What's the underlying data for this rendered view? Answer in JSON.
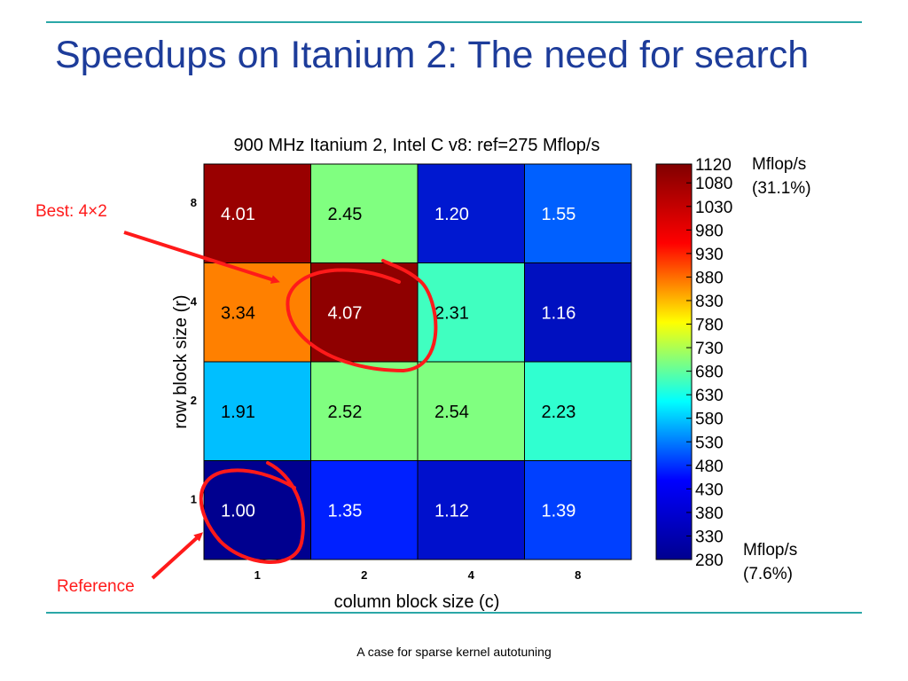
{
  "slide": {
    "title": "Speedups on Itanium 2: The need for search",
    "footer": "A case for sparse kernel autotuning",
    "best_label": "Best: 4×2",
    "reference_label": "Reference",
    "max_note_line1": "Mflop/s",
    "max_note_line2": "(31.1%)",
    "min_note_line1": "Mflop/s",
    "min_note_line2": "(7.6%)"
  },
  "colors": {
    "title": "#1d3c9a",
    "rule": "#2aa7a7",
    "annotation": "#ff1a1a"
  },
  "chart_data": {
    "type": "heatmap",
    "title": "900 MHz Itanium 2, Intel C v8: ref=275 Mflop/s",
    "xlabel": "column block size (c)",
    "ylabel": "row block size (r)",
    "x_categories": [
      "1",
      "2",
      "4",
      "8"
    ],
    "y_categories": [
      "1",
      "2",
      "4",
      "8"
    ],
    "speedups": [
      [
        1.0,
        1.35,
        1.12,
        1.39
      ],
      [
        1.91,
        2.52,
        2.54,
        2.23
      ],
      [
        3.34,
        4.07,
        2.31,
        1.16
      ],
      [
        4.01,
        2.45,
        1.2,
        1.55
      ]
    ],
    "cell_colors": [
      [
        "#00008f",
        "#0020ff",
        "#0010cc",
        "#0040ff"
      ],
      [
        "#00bfff",
        "#80ff80",
        "#80ff80",
        "#30ffd0"
      ],
      [
        "#ff8000",
        "#8f0000",
        "#40ffc0",
        "#0010c0"
      ],
      [
        "#990000",
        "#80ff80",
        "#0018d0",
        "#0060ff"
      ]
    ],
    "colorbar": {
      "min": 280,
      "max": 1120,
      "ticks": [
        1120,
        1080,
        1030,
        980,
        930,
        880,
        830,
        780,
        730,
        680,
        630,
        580,
        530,
        480,
        430,
        380,
        330,
        280
      ],
      "colormap": [
        "#00008f",
        "#0000ff",
        "#00ffff",
        "#ffff00",
        "#ff0000",
        "#800000"
      ]
    },
    "highlight": {
      "best_cell": [
        "4",
        "2"
      ],
      "reference_cell": [
        "1",
        "1"
      ]
    }
  }
}
